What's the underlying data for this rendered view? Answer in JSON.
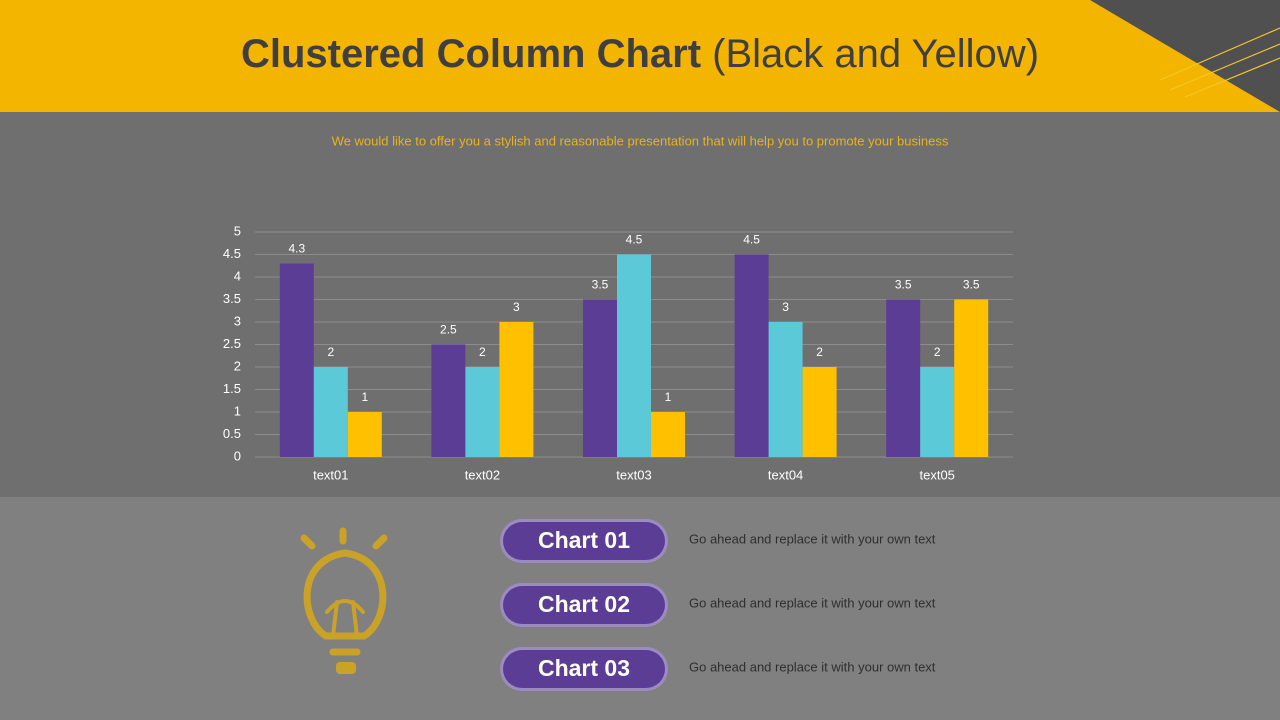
{
  "header": {
    "title_main": "Clustered Column Chart",
    "title_note": "(Black and Yellow)"
  },
  "subtitle": "We would like to offer you a stylish and reasonable presentation that will help you to promote your business",
  "chart_data": {
    "type": "bar",
    "categories": [
      "text01",
      "text02",
      "text03",
      "text04",
      "text05"
    ],
    "series": [
      {
        "color": "#5b3d96",
        "values": [
          4.3,
          2.5,
          3.5,
          4.5,
          3.5
        ]
      },
      {
        "color": "#5bc9d8",
        "values": [
          2,
          2,
          4.5,
          3,
          2
        ]
      },
      {
        "color": "#ffc000",
        "values": [
          1,
          3,
          1,
          2,
          3.5
        ]
      }
    ],
    "ylim": [
      0,
      5
    ],
    "yticks": [
      0,
      0.5,
      1,
      1.5,
      2,
      2.5,
      3,
      3.5,
      4,
      4.5,
      5
    ],
    "grid": true
  },
  "items": [
    {
      "button": "Chart 01",
      "text": "Go ahead and replace it with your own text"
    },
    {
      "button": "Chart 02",
      "text": "Go ahead and replace it with your own text"
    },
    {
      "button": "Chart 03",
      "text": "Go ahead and replace it with your own text"
    }
  ]
}
